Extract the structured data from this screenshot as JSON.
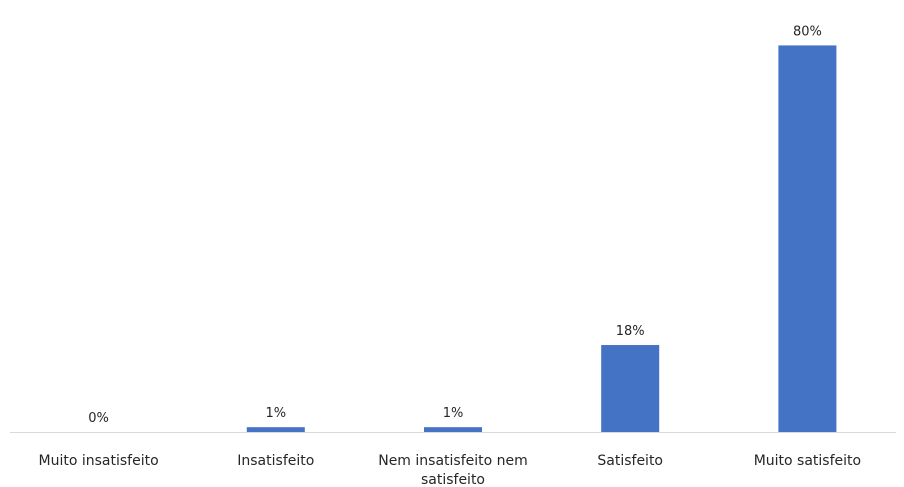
{
  "chart_data": {
    "type": "bar",
    "categories": [
      "Muito insatisfeito",
      "Insatisfeito",
      "Nem insatisfeito nem satisfeito",
      "Satisfeito",
      "Muito satisfeito"
    ],
    "category_label_lines": [
      [
        "Muito insatisfeito"
      ],
      [
        "Insatisfeito"
      ],
      [
        "Nem insatisfeito nem",
        "satisfeito"
      ],
      [
        "Satisfeito"
      ],
      [
        "Muito satisfeito"
      ]
    ],
    "values": [
      0,
      1,
      1,
      18,
      80
    ],
    "data_labels": [
      "0%",
      "1%",
      "1%",
      "18%",
      "80%"
    ],
    "ylim": [
      0,
      87
    ],
    "bar_color": "#4472C4",
    "axis_color": "#D9D9D9",
    "grid": false,
    "legend": false,
    "title": "",
    "xlabel": "",
    "ylabel": ""
  }
}
